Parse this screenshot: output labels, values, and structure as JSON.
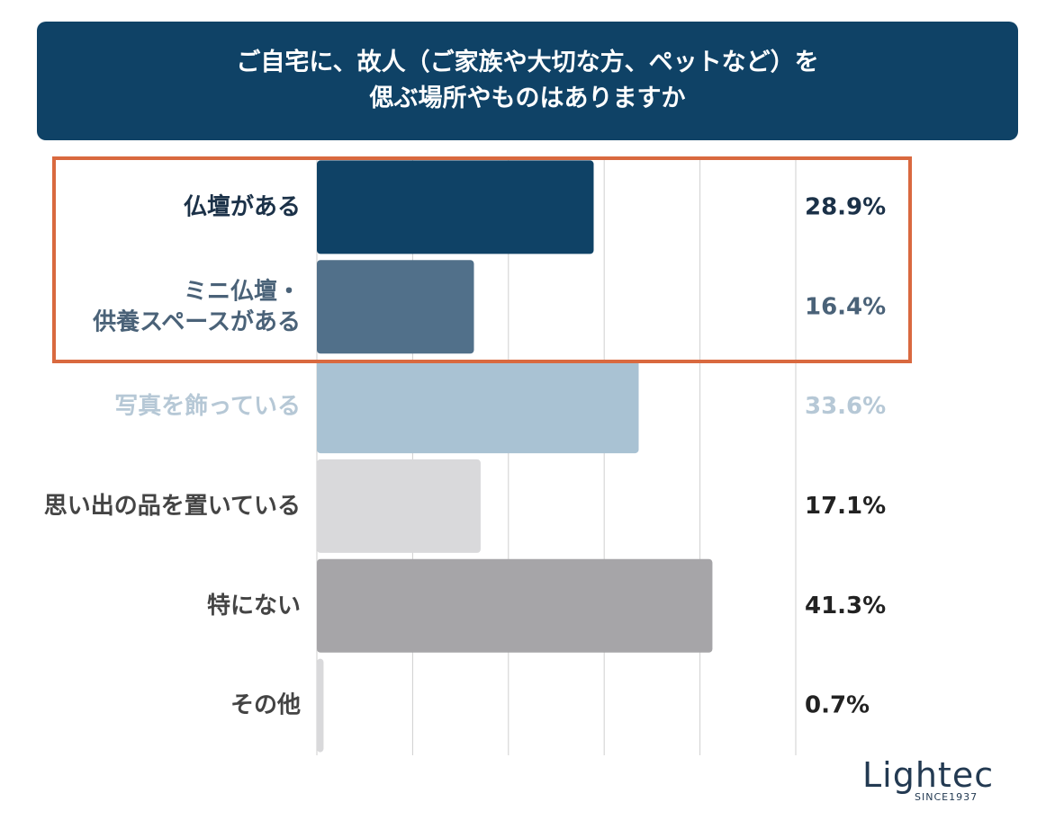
{
  "title": {
    "line1": "ご自宅に、故人（ご家族や大切な方、ペットなど）を",
    "line2": "偲ぶ場所やものはありますか"
  },
  "logo": {
    "name": "Lightec",
    "tagline": "SINCE1937"
  },
  "chart_data": {
    "type": "bar",
    "orientation": "horizontal",
    "title": "ご自宅に、故人（ご家族や大切な方、ペットなど）を偲ぶ場所やものはありますか",
    "categories": [
      [
        "仏壇がある"
      ],
      [
        "ミニ仏壇・",
        "供養スペースがある"
      ],
      [
        "写真を飾っている"
      ],
      [
        "思い出の品を置いている"
      ],
      [
        "特にない"
      ],
      [
        "その他"
      ]
    ],
    "values": [
      28.9,
      16.4,
      33.6,
      17.1,
      41.3,
      0.7
    ],
    "value_labels": [
      "28.9%",
      "16.4%",
      "33.6%",
      "17.1%",
      "41.3%",
      "0.7%"
    ],
    "bar_colors": [
      "#0f4266",
      "#51708a",
      "#a9c2d3",
      "#d9d9db",
      "#a6a5a8",
      "#d9d9db"
    ],
    "label_colors": [
      "#1b3148",
      "#4a6278",
      "#b6c8d6",
      "#444444",
      "#444444",
      "#444444"
    ],
    "value_colors": [
      "#1b3148",
      "#4a6278",
      "#b6c8d6",
      "#222222",
      "#222222",
      "#222222"
    ],
    "xlim": [
      0,
      50
    ],
    "grid": true,
    "highlight_categories": [
      0,
      1
    ],
    "highlight_color": "#d9693f"
  }
}
